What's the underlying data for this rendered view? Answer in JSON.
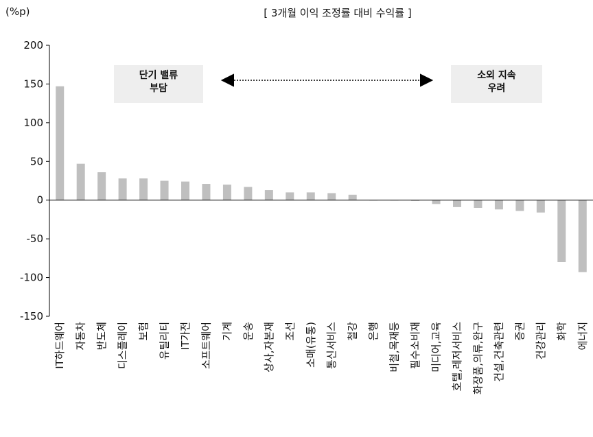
{
  "chart_data": {
    "type": "bar",
    "title": "[ 3개월 이익 조정률 대비 수익률 ]",
    "ylabel": "(%p)",
    "ylim": [
      -150,
      200
    ],
    "yticks": [
      200,
      150,
      100,
      50,
      0,
      -50,
      -100,
      -150
    ],
    "bar_color": "#bfbfbf",
    "categories": [
      "IT하드웨어",
      "자동차",
      "반도체",
      "디스플레이",
      "보험",
      "유틸리티",
      "IT가전",
      "소프트웨어",
      "기계",
      "운송",
      "상사,자본재",
      "조선",
      "소매(유통)",
      "통신서비스",
      "철강",
      "은행",
      "비철,목재등",
      "필수소비재",
      "미디어,교육",
      "호텔,레저서비스",
      "화장품,의류,완구",
      "건설,건축관련",
      "증권",
      "건강관리",
      "화학",
      "에너지"
    ],
    "values": [
      147,
      47,
      36,
      28,
      28,
      25,
      24,
      21,
      20,
      17,
      13,
      10,
      10,
      9,
      7,
      0,
      0,
      -1,
      -5,
      -9,
      -10,
      -12,
      -14,
      -16,
      -80,
      -93
    ]
  },
  "annotations": {
    "left_note": [
      "단기 밸류",
      "부담"
    ],
    "right_note": [
      "소외 지속",
      "우려"
    ]
  }
}
